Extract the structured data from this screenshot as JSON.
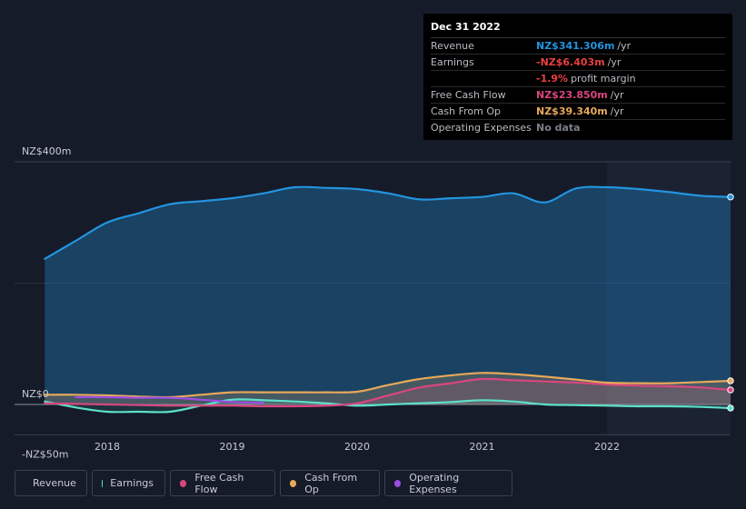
{
  "tooltip": {
    "date": "Dec 31 2022",
    "rows": [
      {
        "label": "Revenue",
        "value": "NZ$341.306m",
        "unit": "/yr",
        "color": "#2394df"
      },
      {
        "label": "Earnings",
        "value": "-NZ$6.403m",
        "unit": "/yr",
        "color": "#e64040"
      },
      {
        "label": "",
        "value": "-1.9%",
        "unit": "profit margin",
        "color": "#e64040"
      },
      {
        "label": "Free Cash Flow",
        "value": "NZ$23.850m",
        "unit": "/yr",
        "color": "#d9467f"
      },
      {
        "label": "Cash From Op",
        "value": "NZ$39.340m",
        "unit": "/yr",
        "color": "#e8a85a"
      },
      {
        "label": "Operating Expenses",
        "value": "No data",
        "unit": "",
        "color": "#7a7f88"
      }
    ]
  },
  "legend": [
    {
      "label": "Revenue",
      "color": "#2394df"
    },
    {
      "label": "Earnings",
      "color": "#5de0c9"
    },
    {
      "label": "Free Cash Flow",
      "color": "#d9467f"
    },
    {
      "label": "Cash From Op",
      "color": "#e8a85a"
    },
    {
      "label": "Operating Expenses",
      "color": "#9b4de3"
    }
  ],
  "chart_data": {
    "type": "area",
    "y_tick_labels": [
      {
        "value": 400,
        "label": "NZ$400m"
      },
      {
        "value": 0,
        "label": "NZ$0"
      },
      {
        "value": -50,
        "label": "-NZ$50m"
      }
    ],
    "x_tick_labels": [
      {
        "value": 2018,
        "label": "2018"
      },
      {
        "value": 2019,
        "label": "2019"
      },
      {
        "value": 2020,
        "label": "2020"
      },
      {
        "value": 2021,
        "label": "2021"
      },
      {
        "value": 2022,
        "label": "2022"
      }
    ],
    "xlim": [
      2017.5,
      2023.0
    ],
    "ylim": [
      -50,
      400
    ],
    "highlight_start": 2022.0,
    "series": [
      {
        "name": "Revenue",
        "color": "#2394df",
        "x": [
          2017.5,
          2017.75,
          2018.0,
          2018.25,
          2018.5,
          2018.75,
          2019.0,
          2019.25,
          2019.5,
          2019.75,
          2020.0,
          2020.25,
          2020.5,
          2020.75,
          2021.0,
          2021.25,
          2021.5,
          2021.75,
          2022.0,
          2022.25,
          2022.5,
          2022.75,
          2023.0
        ],
        "values": [
          240,
          270,
          300,
          315,
          330,
          335,
          340,
          348,
          358,
          357,
          355,
          348,
          338,
          340,
          342,
          348,
          333,
          356,
          358,
          355,
          350,
          344,
          342
        ]
      },
      {
        "name": "Earnings",
        "color": "#5de0c9",
        "x": [
          2017.5,
          2017.75,
          2018.0,
          2018.25,
          2018.5,
          2018.75,
          2019.0,
          2019.25,
          2019.5,
          2019.75,
          2020.0,
          2020.25,
          2020.5,
          2020.75,
          2021.0,
          2021.25,
          2021.5,
          2021.75,
          2022.0,
          2022.25,
          2022.5,
          2022.75,
          2023.0
        ],
        "values": [
          5,
          -5,
          -12,
          -12,
          -12,
          -2,
          8,
          7,
          5,
          2,
          -2,
          0,
          2,
          4,
          7,
          5,
          0,
          -1,
          -2,
          -3,
          -3,
          -4,
          -6
        ]
      },
      {
        "name": "Free Cash Flow",
        "color": "#d9467f",
        "x": [
          2017.5,
          2017.75,
          2018.0,
          2018.25,
          2018.5,
          2018.75,
          2019.0,
          2019.25,
          2019.5,
          2019.75,
          2020.0,
          2020.25,
          2020.5,
          2020.75,
          2021.0,
          2021.25,
          2021.5,
          2021.75,
          2022.0,
          2022.25,
          2022.5,
          2022.75,
          2023.0
        ],
        "values": [
          2,
          1,
          0,
          -1,
          -2,
          -2,
          -2,
          -3,
          -3,
          -2,
          2,
          15,
          28,
          35,
          42,
          40,
          38,
          36,
          33,
          31,
          30,
          28,
          24
        ]
      },
      {
        "name": "Cash From Op",
        "color": "#e8a85a",
        "x": [
          2017.5,
          2017.75,
          2018.0,
          2018.25,
          2018.5,
          2018.75,
          2019.0,
          2019.25,
          2019.5,
          2019.75,
          2020.0,
          2020.25,
          2020.5,
          2020.75,
          2021.0,
          2021.25,
          2021.5,
          2021.75,
          2022.0,
          2022.25,
          2022.5,
          2022.75,
          2023.0
        ],
        "values": [
          16,
          16,
          15,
          13,
          12,
          16,
          20,
          20,
          20,
          20,
          21,
          32,
          42,
          48,
          52,
          50,
          46,
          41,
          36,
          35,
          35,
          37,
          39
        ]
      },
      {
        "name": "Operating Expenses",
        "color": "#9b4de3",
        "x": [
          2017.75,
          2018.0,
          2018.25,
          2018.5,
          2018.75,
          2019.0,
          2019.25
        ],
        "values": [
          12,
          12,
          11,
          11,
          8,
          4,
          3
        ]
      }
    ]
  }
}
